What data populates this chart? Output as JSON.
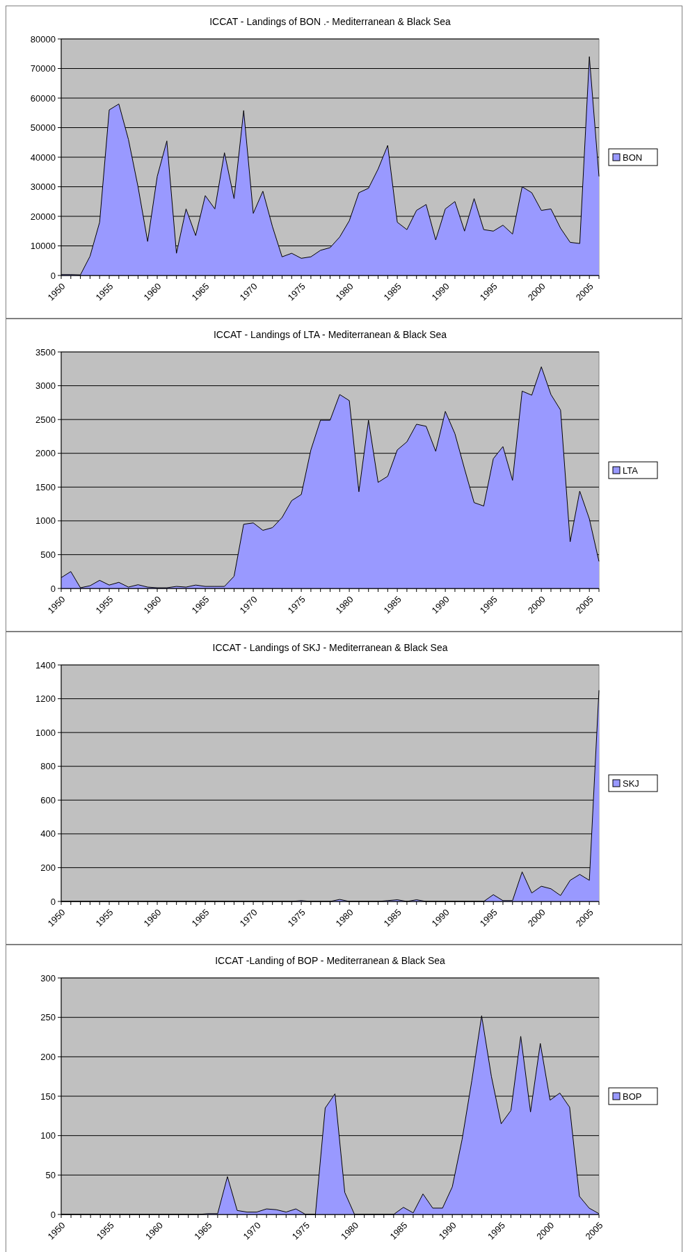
{
  "chart_data": [
    {
      "type": "area",
      "title": "ICCAT - Landings of BON .- Mediterranean & Black Sea",
      "x": [
        1950,
        1951,
        1952,
        1953,
        1954,
        1955,
        1956,
        1957,
        1958,
        1959,
        1960,
        1961,
        1962,
        1963,
        1964,
        1965,
        1966,
        1967,
        1968,
        1969,
        1970,
        1971,
        1972,
        1973,
        1974,
        1975,
        1976,
        1977,
        1978,
        1979,
        1980,
        1981,
        1982,
        1983,
        1984,
        1985,
        1986,
        1987,
        1988,
        1989,
        1990,
        1991,
        1992,
        1993,
        1994,
        1995,
        1996,
        1997,
        1998,
        1999,
        2000,
        2001,
        2002,
        2003,
        2004,
        2005,
        2006
      ],
      "series": [
        {
          "name": "BON",
          "color": "#9999ff",
          "values": [
            300,
            300,
            200,
            6500,
            18000,
            56000,
            58000,
            46000,
            30000,
            11500,
            33500,
            45500,
            7500,
            22500,
            13500,
            27000,
            22500,
            41500,
            26000,
            55800,
            21000,
            28500,
            16500,
            6300,
            7500,
            5800,
            6300,
            8500,
            9400,
            13000,
            18500,
            28000,
            29500,
            36000,
            44000,
            18000,
            15500,
            22000,
            24000,
            12000,
            22500,
            25000,
            15000,
            26000,
            15500,
            15000,
            17000,
            14000,
            30000,
            28000,
            22000,
            22500,
            16000,
            11200,
            10800,
            74000,
            33500
          ]
        }
      ],
      "xlim": [
        1950,
        2006
      ],
      "xticks": [
        1950,
        1955,
        1960,
        1965,
        1970,
        1975,
        1980,
        1985,
        1990,
        1995,
        2000,
        2005
      ],
      "ylim": [
        0,
        80000
      ],
      "yticks": [
        0,
        10000,
        20000,
        30000,
        40000,
        50000,
        60000,
        70000,
        80000
      ],
      "grid": "y",
      "legend": "right"
    },
    {
      "type": "area",
      "title": "ICCAT - Landings of LTA - Mediterranean & Black Sea",
      "x": [
        1950,
        1951,
        1952,
        1953,
        1954,
        1955,
        1956,
        1957,
        1958,
        1959,
        1960,
        1961,
        1962,
        1963,
        1964,
        1965,
        1966,
        1967,
        1968,
        1969,
        1970,
        1971,
        1972,
        1973,
        1974,
        1975,
        1976,
        1977,
        1978,
        1979,
        1980,
        1981,
        1982,
        1983,
        1984,
        1985,
        1986,
        1987,
        1988,
        1989,
        1990,
        1991,
        1992,
        1993,
        1994,
        1995,
        1996,
        1997,
        1998,
        1999,
        2000,
        2001,
        2002,
        2003,
        2004,
        2005,
        2006
      ],
      "series": [
        {
          "name": "LTA",
          "color": "#9999ff",
          "values": [
            160,
            250,
            10,
            40,
            120,
            50,
            90,
            20,
            55,
            20,
            10,
            10,
            30,
            20,
            50,
            30,
            30,
            30,
            180,
            950,
            970,
            860,
            900,
            1050,
            1300,
            1390,
            2050,
            2490,
            2490,
            2870,
            2780,
            1430,
            2490,
            1570,
            1660,
            2050,
            2170,
            2430,
            2400,
            2030,
            2620,
            2290,
            1770,
            1270,
            1220,
            1920,
            2100,
            1600,
            2920,
            2860,
            3280,
            2870,
            2640,
            690,
            1440,
            1030,
            400
          ]
        }
      ],
      "xlim": [
        1950,
        2006
      ],
      "xticks": [
        1950,
        1955,
        1960,
        1965,
        1970,
        1975,
        1980,
        1985,
        1990,
        1995,
        2000,
        2005
      ],
      "ylim": [
        0,
        3500
      ],
      "yticks": [
        0,
        500,
        1000,
        1500,
        2000,
        2500,
        3000,
        3500
      ],
      "grid": "y",
      "legend": "right"
    },
    {
      "type": "area",
      "title": "ICCAT - Landings of SKJ - Mediterranean & Black Sea",
      "x": [
        1950,
        1951,
        1952,
        1953,
        1954,
        1955,
        1956,
        1957,
        1958,
        1959,
        1960,
        1961,
        1962,
        1963,
        1964,
        1965,
        1966,
        1967,
        1968,
        1969,
        1970,
        1971,
        1972,
        1973,
        1974,
        1975,
        1976,
        1977,
        1978,
        1979,
        1980,
        1981,
        1982,
        1983,
        1984,
        1985,
        1986,
        1987,
        1988,
        1989,
        1990,
        1991,
        1992,
        1993,
        1994,
        1995,
        1996,
        1997,
        1998,
        1999,
        2000,
        2001,
        2002,
        2003,
        2004,
        2005,
        2006
      ],
      "series": [
        {
          "name": "SKJ",
          "color": "#9999ff",
          "values": [
            0,
            0,
            0,
            0,
            0,
            0,
            0,
            0,
            0,
            0,
            0,
            0,
            0,
            0,
            0,
            0,
            0,
            0,
            0,
            0,
            0,
            0,
            0,
            0,
            0,
            5,
            0,
            0,
            0,
            12,
            0,
            0,
            0,
            0,
            5,
            10,
            0,
            10,
            0,
            0,
            0,
            0,
            0,
            0,
            0,
            40,
            5,
            5,
            175,
            50,
            90,
            75,
            35,
            125,
            160,
            125,
            1250
          ]
        }
      ],
      "xlim": [
        1950,
        2006
      ],
      "xticks": [
        1950,
        1955,
        1960,
        1965,
        1970,
        1975,
        1980,
        1985,
        1990,
        1995,
        2000,
        2005
      ],
      "ylim": [
        0,
        1400
      ],
      "yticks": [
        0,
        200,
        400,
        600,
        800,
        1000,
        1200,
        1400
      ],
      "grid": "y",
      "legend": "right"
    },
    {
      "type": "area",
      "title": "ICCAT -Landing of BOP - Mediterranean & Black Sea",
      "x": [
        1950,
        1951,
        1952,
        1953,
        1954,
        1955,
        1956,
        1957,
        1958,
        1959,
        1960,
        1961,
        1962,
        1963,
        1964,
        1965,
        1966,
        1967,
        1968,
        1969,
        1970,
        1971,
        1972,
        1973,
        1974,
        1975,
        1976,
        1977,
        1978,
        1979,
        1980,
        1981,
        1982,
        1983,
        1984,
        1985,
        1986,
        1987,
        1988,
        1989,
        1990,
        1991,
        1992,
        1993,
        1994,
        1995,
        1996,
        1997,
        1998,
        1999,
        2000,
        2001,
        2002,
        2003,
        2004,
        2005
      ],
      "series": [
        {
          "name": "BOP",
          "color": "#9999ff",
          "values": [
            0,
            0,
            0,
            0,
            0,
            0,
            0,
            0,
            0,
            0,
            0,
            0,
            0,
            0,
            0,
            1,
            1,
            48,
            5,
            3,
            3,
            7,
            6,
            3,
            7,
            0,
            0,
            135,
            153,
            28,
            0,
            0,
            0,
            0,
            0,
            9,
            2,
            26,
            8,
            8,
            35,
            95,
            170,
            252,
            175,
            115,
            132,
            226,
            130,
            217,
            145,
            154,
            136,
            23,
            8,
            1
          ]
        }
      ],
      "xlim": [
        1950,
        2005
      ],
      "xticks": [
        1950,
        1955,
        1960,
        1965,
        1970,
        1975,
        1980,
        1985,
        1990,
        1995,
        2000,
        2005
      ],
      "ylim": [
        0,
        300
      ],
      "yticks": [
        0,
        50,
        100,
        150,
        200,
        250,
        300
      ],
      "grid": "y",
      "legend": "right"
    }
  ]
}
